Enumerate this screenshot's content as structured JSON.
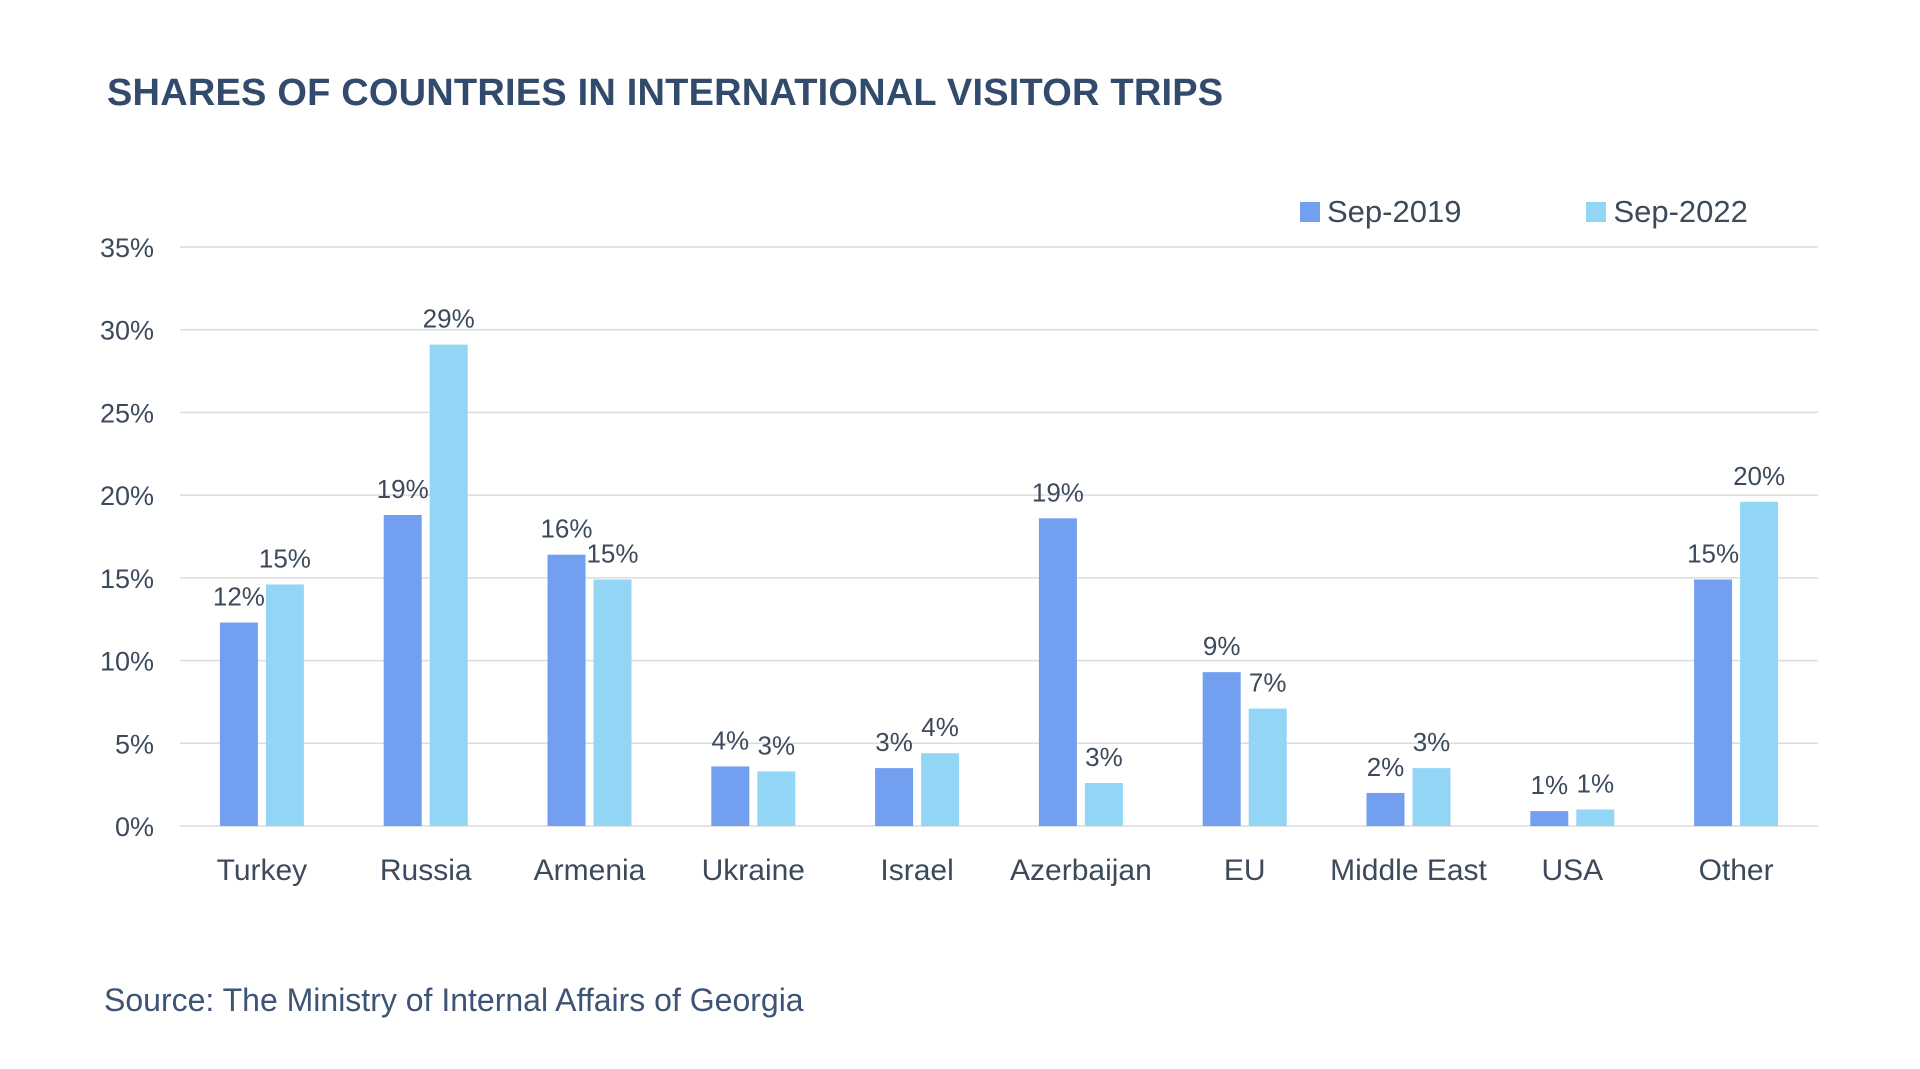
{
  "title": "SHARES OF COUNTRIES IN INTERNATIONAL VISITOR TRIPS",
  "source": "Source: The Ministry of Internal Affairs of Georgia",
  "colors": {
    "series_2019": "#729ff0",
    "series_2022": "#93d5f5",
    "gridline": "#dcdcdc",
    "axis_text": "#3c4a5c",
    "title": "#324a6b"
  },
  "chart_data": {
    "type": "bar",
    "title": "SHARES OF COUNTRIES IN INTERNATIONAL VISITOR TRIPS",
    "xlabel": "",
    "ylabel": "",
    "ylim": [
      0,
      35
    ],
    "yticks": [
      0,
      5,
      10,
      15,
      20,
      25,
      30,
      35
    ],
    "ytick_labels": [
      "0%",
      "5%",
      "10%",
      "15%",
      "20%",
      "25%",
      "30%",
      "35%"
    ],
    "grid": true,
    "legend_position": "top-right",
    "categories": [
      "Turkey",
      "Russia",
      "Armenia",
      "Ukraine",
      "Israel",
      "Azerbaijan",
      "EU",
      "Middle East",
      "USA",
      "Other"
    ],
    "series": [
      {
        "name": "Sep-2019",
        "values": [
          12.3,
          18.8,
          16.4,
          3.6,
          3.5,
          18.6,
          9.3,
          2.0,
          0.9,
          14.9
        ],
        "labels": [
          "12%",
          "19%",
          "16%",
          "4%",
          "3%",
          "19%",
          "9%",
          "2%",
          "1%",
          "15%"
        ]
      },
      {
        "name": "Sep-2022",
        "values": [
          14.6,
          29.1,
          14.9,
          3.3,
          4.4,
          2.6,
          7.1,
          3.5,
          1.0,
          19.6
        ],
        "labels": [
          "15%",
          "29%",
          "15%",
          "3%",
          "4%",
          "3%",
          "7%",
          "3%",
          "1%",
          "20%"
        ]
      }
    ]
  }
}
